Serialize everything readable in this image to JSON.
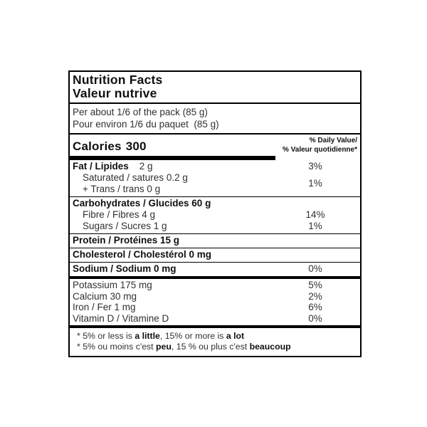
{
  "label": {
    "title_en": "Nutrition Facts",
    "title_fr": "Valeur nutrive",
    "serving_en": "Per about 1/6 of the pack (85 g)",
    "serving_fr": "Pour environ 1/6 du paquet  (85 g)",
    "calories_label": "Calories",
    "calories_value": "300",
    "dv_header_en": "% Daily Value/",
    "dv_header_fr": "% Valeur quotidienne*",
    "rows": {
      "fat": {
        "name": "Fat / Lipides",
        "amount": "2 g",
        "dv": "3%"
      },
      "saturated_trans": {
        "line1": "Saturated / satures 0.2 g",
        "line2": "+ Trans / trans 0 g",
        "dv": "1%"
      },
      "carbohydrate": {
        "name": "Carbohydrates / Glucides 60 g"
      },
      "fibre": {
        "name": "Fibre / Fibres 4 g",
        "dv": "14%"
      },
      "sugars": {
        "name": "Sugars / Sucres 1 g",
        "dv": "1%"
      },
      "protein": {
        "name": "Protein / Protéines 15 g"
      },
      "cholesterol": {
        "name": "Cholesterol / Cholestérol 0 mg"
      },
      "sodium": {
        "name": "Sodium / Sodium 0 mg",
        "dv": "0%"
      },
      "potassium": {
        "name": "Potassium 175 mg",
        "dv": "5%"
      },
      "calcium": {
        "name": "Calcium 30 mg",
        "dv": "2%"
      },
      "iron": {
        "name": "Iron / Fer 1 mg",
        "dv": "6%"
      },
      "vitamin_d": {
        "name": "Vitamin D / Vitamine D",
        "dv": "0%"
      }
    },
    "footnote_en": {
      "pre": "* 5% or less is ",
      "bold1": "a little",
      "mid": ", 15% or more is ",
      "bold2": "a lot"
    },
    "footnote_fr": {
      "pre": "* 5% ou moins c'est ",
      "bold1": "peu",
      "mid": ", 15 % ou plus c'est ",
      "bold2": "beaucoup"
    }
  },
  "colors": {
    "border": "#000000",
    "text": "#303030",
    "bold_text": "#101010",
    "background": "#ffffff"
  }
}
